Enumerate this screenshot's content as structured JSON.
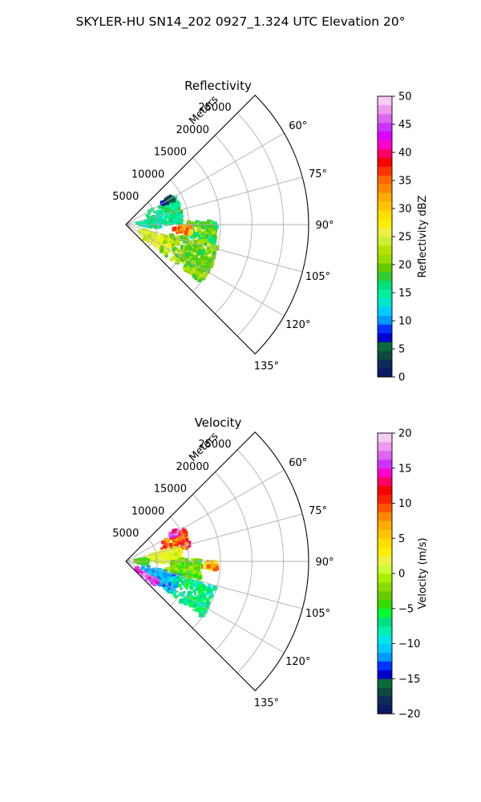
{
  "suptitle": "SKYLER-HU  SN14_202  0927_1.324 UTC Elevation 20°",
  "chart_data": [
    {
      "type": "heatmap",
      "projection": "polar-sector",
      "title": "Reflectivity",
      "radial_label": "Meters",
      "radial_ticks": [
        "5000",
        "10000",
        "15000",
        "20000",
        "25000"
      ],
      "radial_tick_values": [
        5000,
        10000,
        15000,
        20000,
        25000
      ],
      "r_max": 29000,
      "angle_ticks": [
        "60°",
        "75°",
        "90°",
        "105°",
        "120°",
        "135°"
      ],
      "angle_tick_values": [
        60,
        75,
        90,
        105,
        120,
        135
      ],
      "theta_range": [
        45,
        135
      ],
      "grid": true,
      "colorbar": {
        "label": "Reflectivity dBZ",
        "min": 0,
        "max": 50,
        "ticks": [
          "0",
          "5",
          "10",
          "15",
          "20",
          "25",
          "30",
          "35",
          "40",
          "45",
          "50"
        ],
        "tick_values": [
          0,
          5,
          10,
          15,
          20,
          25,
          30,
          35,
          40,
          45,
          50
        ],
        "levels": 32,
        "colors": [
          "#0a1a63",
          "#0c2a5c",
          "#0d4a3f",
          "#0a6b3a",
          "#0000cc",
          "#0033ff",
          "#0099ff",
          "#00ccff",
          "#00e6cc",
          "#00f0a0",
          "#00e07a",
          "#33cc33",
          "#66cc00",
          "#99dd00",
          "#b8e000",
          "#ccee33",
          "#eeee44",
          "#ffee00",
          "#ffdd00",
          "#ffc400",
          "#ffaa00",
          "#ff8800",
          "#ff6600",
          "#ff3300",
          "#ff0000",
          "#ff0066",
          "#ff00cc",
          "#dd00ff",
          "#cc33ff",
          "#dd66ee",
          "#ee99ee",
          "#f5ccf5"
        ]
      }
    },
    {
      "type": "heatmap",
      "projection": "polar-sector",
      "title": "Velocity",
      "radial_label": "Meters",
      "radial_ticks": [
        "5000",
        "10000",
        "15000",
        "20000",
        "25000"
      ],
      "radial_tick_values": [
        5000,
        10000,
        15000,
        20000,
        25000
      ],
      "r_max": 29000,
      "angle_ticks": [
        "60°",
        "75°",
        "90°",
        "105°",
        "120°",
        "135°"
      ],
      "angle_tick_values": [
        60,
        75,
        90,
        105,
        120,
        135
      ],
      "theta_range": [
        45,
        135
      ],
      "grid": true,
      "colorbar": {
        "label": "Velocity (m/s)",
        "min": -20,
        "max": 20,
        "ticks": [
          "−20",
          "−15",
          "−10",
          "−5",
          "0",
          "5",
          "10",
          "15",
          "20"
        ],
        "tick_values": [
          -20,
          -15,
          -10,
          -5,
          0,
          5,
          10,
          15,
          20
        ],
        "levels": 32,
        "colors": [
          "#0a1a63",
          "#0c2a5c",
          "#0d4a3f",
          "#0a6b3a",
          "#0000cc",
          "#0033ff",
          "#0099ff",
          "#00ccff",
          "#00e6e6",
          "#00f0b0",
          "#00e080",
          "#00ff33",
          "#33dd00",
          "#66cc00",
          "#88dd00",
          "#aaee00",
          "#ccff33",
          "#eeee44",
          "#ffee00",
          "#ffdd00",
          "#ffc400",
          "#ffaa00",
          "#ff8800",
          "#ff5500",
          "#ff2200",
          "#ff0000",
          "#ff0066",
          "#ff00cc",
          "#cc33ff",
          "#dd66ee",
          "#ee99ee",
          "#f5ccf5"
        ]
      }
    }
  ]
}
